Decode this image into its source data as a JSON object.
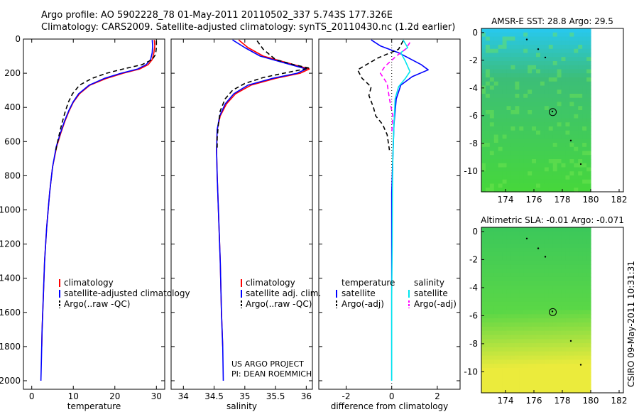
{
  "header": {
    "line1": "Argo profile: AO 5902228_78 01-May-2011 20110502_337 5.743S 177.326E",
    "line2": "Climatology: CARS2009. Satellite-adjusted climatology: synTS_20110430.nc (1.2d earlier)"
  },
  "side_label": "CSIRO 09-May-2011 10:31:31",
  "project_note": {
    "line1": "US ARGO PROJECT",
    "line2": "PI: DEAN ROEMMICH"
  },
  "colors": {
    "red": "#ff0000",
    "blue": "#0000ff",
    "black": "#000000",
    "cyan": "#00e5ee",
    "magenta": "#ff00ff"
  },
  "chart_data": [
    {
      "id": "temperature",
      "type": "line",
      "xlabel": "temperature",
      "xlim": [
        -2,
        32
      ],
      "ylim": [
        2050,
        0
      ],
      "xticks": [
        0,
        10,
        20,
        30
      ],
      "xtick_labels": [
        "0",
        "10",
        "20",
        "30"
      ],
      "yticks": [
        0,
        200,
        400,
        600,
        800,
        1000,
        1200,
        1400,
        1600,
        1800,
        2000
      ],
      "ytick_labels": [
        "0",
        "200",
        "400",
        "600",
        "800",
        "1000",
        "1200",
        "1400",
        "1600",
        "1800",
        "2000"
      ],
      "legend": [
        "climatology",
        "satellite-adjusted climatology",
        "Argo(..raw -QC)"
      ],
      "series": [
        {
          "name": "climatology",
          "color": "red",
          "dash": "",
          "points": [
            [
              29.5,
              5
            ],
            [
              29.6,
              40
            ],
            [
              29.4,
              80
            ],
            [
              29.0,
              120
            ],
            [
              28.0,
              150
            ],
            [
              26.0,
              175
            ],
            [
              22.0,
              200
            ],
            [
              18.0,
              230
            ],
            [
              14.0,
              270
            ],
            [
              11.5,
              320
            ],
            [
              10.0,
              370
            ],
            [
              9.0,
              420
            ],
            [
              8.0,
              480
            ],
            [
              7.0,
              550
            ],
            [
              6.0,
              630
            ],
            [
              5.0,
              750
            ],
            [
              4.3,
              900
            ],
            [
              3.6,
              1100
            ],
            [
              3.1,
              1300
            ],
            [
              2.8,
              1500
            ],
            [
              2.5,
              1700
            ],
            [
              2.4,
              1800
            ]
          ]
        },
        {
          "name": "satellite-adjusted climatology",
          "color": "blue",
          "dash": "",
          "points": [
            [
              29.0,
              5
            ],
            [
              29.1,
              40
            ],
            [
              29.0,
              80
            ],
            [
              28.6,
              120
            ],
            [
              27.5,
              150
            ],
            [
              25.5,
              175
            ],
            [
              21.5,
              200
            ],
            [
              17.5,
              230
            ],
            [
              13.8,
              270
            ],
            [
              11.3,
              320
            ],
            [
              9.9,
              370
            ],
            [
              8.9,
              420
            ],
            [
              7.9,
              480
            ],
            [
              6.9,
              550
            ],
            [
              5.9,
              630
            ],
            [
              5.0,
              750
            ],
            [
              4.3,
              900
            ],
            [
              3.6,
              1100
            ],
            [
              3.1,
              1300
            ],
            [
              2.8,
              1500
            ],
            [
              2.5,
              1700
            ],
            [
              2.3,
              1900
            ],
            [
              2.2,
              2000
            ]
          ]
        },
        {
          "name": "Argo(..raw -QC)",
          "color": "black",
          "dash": "6,4",
          "points": [
            [
              30.0,
              10
            ],
            [
              30.0,
              50
            ],
            [
              29.8,
              90
            ],
            [
              29.0,
              120
            ],
            [
              26.5,
              150
            ],
            [
              22.0,
              175
            ],
            [
              18.0,
              200
            ],
            [
              14.5,
              230
            ],
            [
              11.5,
              270
            ],
            [
              9.8,
              320
            ],
            [
              8.8,
              370
            ],
            [
              8.0,
              430
            ],
            [
              7.2,
              500
            ],
            [
              6.4,
              580
            ],
            [
              5.8,
              650
            ]
          ]
        }
      ]
    },
    {
      "id": "salinity",
      "type": "line",
      "xlabel": "salinity",
      "xlim": [
        33.8,
        36.1
      ],
      "ylim": [
        2050,
        0
      ],
      "xticks": [
        34,
        34.5,
        35,
        35.5,
        36
      ],
      "xtick_labels": [
        "34",
        "34.5",
        "35",
        "35.5",
        "36"
      ],
      "legend": [
        "climatology",
        "satellite adj. clim.",
        "Argo(..raw -QC)"
      ],
      "series": [
        {
          "name": "climatology",
          "color": "red",
          "dash": "",
          "points": [
            [
              34.9,
              5
            ],
            [
              35.05,
              50
            ],
            [
              35.3,
              100
            ],
            [
              35.7,
              140
            ],
            [
              36.05,
              175
            ],
            [
              35.9,
              200
            ],
            [
              35.5,
              230
            ],
            [
              35.1,
              270
            ],
            [
              34.85,
              320
            ],
            [
              34.7,
              380
            ],
            [
              34.6,
              450
            ],
            [
              34.55,
              530
            ],
            [
              34.54,
              650
            ],
            [
              34.55,
              800
            ],
            [
              34.57,
              1000
            ],
            [
              34.6,
              1300
            ],
            [
              34.62,
              1600
            ],
            [
              34.64,
              1800
            ]
          ]
        },
        {
          "name": "satellite adj. clim.",
          "color": "blue",
          "dash": "",
          "points": [
            [
              34.8,
              5
            ],
            [
              35.0,
              50
            ],
            [
              35.25,
              100
            ],
            [
              35.65,
              140
            ],
            [
              36.0,
              175
            ],
            [
              35.85,
              200
            ],
            [
              35.45,
              230
            ],
            [
              35.05,
              270
            ],
            [
              34.82,
              320
            ],
            [
              34.68,
              380
            ],
            [
              34.59,
              450
            ],
            [
              34.55,
              530
            ],
            [
              34.54,
              650
            ],
            [
              34.55,
              800
            ],
            [
              34.57,
              1000
            ],
            [
              34.6,
              1300
            ],
            [
              34.62,
              1600
            ],
            [
              34.64,
              1800
            ],
            [
              34.65,
              2000
            ]
          ]
        },
        {
          "name": "Argo(..raw -QC)",
          "color": "black",
          "dash": "6,4",
          "points": [
            [
              35.2,
              10
            ],
            [
              35.3,
              60
            ],
            [
              35.5,
              120
            ],
            [
              35.8,
              150
            ],
            [
              36.05,
              170
            ],
            [
              35.7,
              195
            ],
            [
              35.3,
              225
            ],
            [
              35.0,
              260
            ],
            [
              34.8,
              300
            ],
            [
              34.68,
              350
            ],
            [
              34.6,
              420
            ],
            [
              34.57,
              500
            ],
            [
              34.55,
              580
            ],
            [
              34.55,
              650
            ]
          ]
        }
      ]
    },
    {
      "id": "difference",
      "type": "line",
      "xlabel": "difference from climatology",
      "xlim": [
        -3.2,
        3.0
      ],
      "ylim": [
        2050,
        0
      ],
      "xticks": [
        -2,
        0,
        2
      ],
      "xtick_labels": [
        "-2",
        "0",
        "2"
      ],
      "legend_groups": [
        {
          "title": "temperature",
          "items": [
            "satellite",
            "Argo(-adj)"
          ]
        },
        {
          "title": "salinity",
          "items": [
            "satellite",
            "Argo(-adj)"
          ]
        }
      ],
      "series": [
        {
          "name": "temperature satellite",
          "color": "blue",
          "dash": "",
          "points": [
            [
              -0.9,
              5
            ],
            [
              -0.5,
              40
            ],
            [
              0.3,
              80
            ],
            [
              1.3,
              150
            ],
            [
              1.6,
              180
            ],
            [
              0.9,
              220
            ],
            [
              0.4,
              270
            ],
            [
              0.2,
              350
            ],
            [
              0.1,
              500
            ],
            [
              0.05,
              700
            ],
            [
              0.0,
              900
            ],
            [
              0.0,
              1200
            ],
            [
              0.0,
              1500
            ],
            [
              0.0,
              2000
            ]
          ]
        },
        {
          "name": "temperature Argo(-adj)",
          "color": "black",
          "dash": "6,4",
          "points": [
            [
              0.5,
              10
            ],
            [
              0.3,
              60
            ],
            [
              -0.6,
              110
            ],
            [
              -1.5,
              180
            ],
            [
              -1.3,
              230
            ],
            [
              -0.9,
              280
            ],
            [
              -1.0,
              330
            ],
            [
              -0.8,
              400
            ],
            [
              -0.7,
              450
            ],
            [
              -0.4,
              500
            ],
            [
              -0.2,
              560
            ],
            [
              -0.1,
              650
            ]
          ]
        },
        {
          "name": "salinity satellite",
          "color": "cyan",
          "dash": "",
          "points": [
            [
              0.5,
              5
            ],
            [
              0.7,
              50
            ],
            [
              0.4,
              80
            ],
            [
              0.6,
              130
            ],
            [
              0.8,
              190
            ],
            [
              0.6,
              230
            ],
            [
              0.3,
              280
            ],
            [
              0.15,
              350
            ],
            [
              0.1,
              500
            ],
            [
              0.05,
              700
            ],
            [
              0.03,
              900
            ],
            [
              0.02,
              1200
            ],
            [
              0.0,
              1500
            ],
            [
              0.0,
              2000
            ]
          ]
        },
        {
          "name": "salinity Argo(-adj)",
          "color": "magenta",
          "dash": "6,4",
          "points": [
            [
              0.8,
              20
            ],
            [
              0.6,
              60
            ],
            [
              0.2,
              100
            ],
            [
              -0.3,
              160
            ],
            [
              -0.5,
              200
            ],
            [
              -0.2,
              260
            ],
            [
              -0.1,
              350
            ],
            [
              0.05,
              450
            ],
            [
              0.0,
              550
            ]
          ]
        }
      ]
    },
    {
      "id": "sst_map",
      "type": "heatmap",
      "title": "AMSR-E SST: 28.8 Argo: 29.5",
      "xlim": [
        172.3,
        182.3
      ],
      "ylim": [
        -11.5,
        0.3
      ],
      "xticks": [
        174,
        176,
        178,
        180,
        182
      ],
      "xtick_labels": [
        "174",
        "176",
        "178",
        "180",
        "182"
      ],
      "yticks": [
        0,
        -2,
        -4,
        -6,
        -8,
        -10
      ],
      "ytick_labels": [
        "0",
        "-2",
        "-4",
        "-6",
        "-8",
        "-10"
      ],
      "data_extent": {
        "lon": [
          172.3,
          180.0
        ],
        "lat": [
          -11.5,
          0.3
        ]
      },
      "profile_location": {
        "lon": 177.326,
        "lat": -5.743
      },
      "trajectory": [
        [
          175.5,
          -0.5
        ],
        [
          176.3,
          -1.2
        ],
        [
          176.8,
          -1.8
        ],
        [
          177.3,
          -5.7
        ],
        [
          178.6,
          -7.8
        ],
        [
          179.3,
          -9.5
        ]
      ]
    },
    {
      "id": "sla_map",
      "type": "heatmap",
      "title": "Altimetric SLA: -0.01 Argo: -0.071",
      "xlim": [
        172.3,
        182.3
      ],
      "ylim": [
        -11.5,
        0.3
      ],
      "xticks": [
        174,
        176,
        178,
        180,
        182
      ],
      "xtick_labels": [
        "174",
        "176",
        "178",
        "180",
        "182"
      ],
      "yticks": [
        0,
        -2,
        -4,
        -6,
        -8,
        -10
      ],
      "ytick_labels": [
        "0",
        "-2",
        "-4",
        "-6",
        "-8",
        "-10"
      ],
      "data_extent": {
        "lon": [
          172.3,
          180.0
        ],
        "lat": [
          -11.5,
          0.3
        ]
      },
      "profile_location": {
        "lon": 177.326,
        "lat": -5.743
      },
      "trajectory": [
        [
          175.5,
          -0.5
        ],
        [
          176.3,
          -1.2
        ],
        [
          176.8,
          -1.8
        ],
        [
          177.3,
          -5.7
        ],
        [
          178.6,
          -7.8
        ],
        [
          179.3,
          -9.5
        ]
      ]
    }
  ]
}
